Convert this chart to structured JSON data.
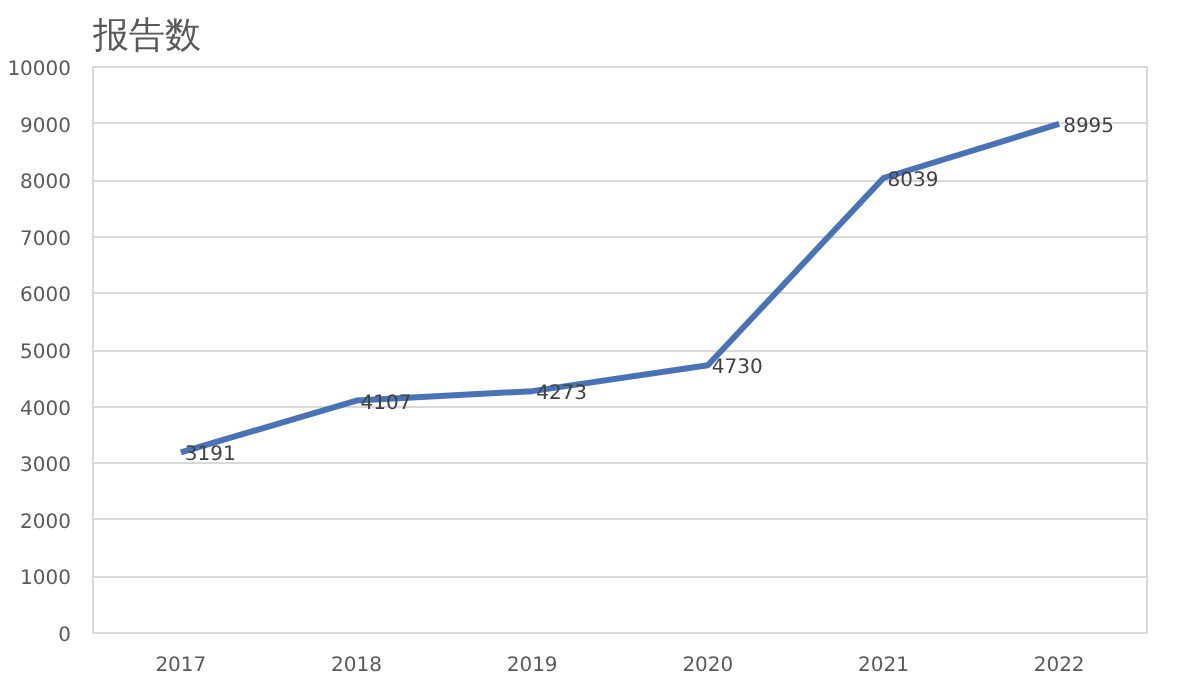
{
  "chart_data": {
    "type": "line",
    "title": "报告数",
    "categories": [
      "2017",
      "2018",
      "2019",
      "2020",
      "2021",
      "2022"
    ],
    "series": [
      {
        "color": "#4a73b5",
        "values": [
          3191,
          4107,
          4273,
          4730,
          8039,
          8995
        ]
      }
    ],
    "ylim": [
      0,
      10000
    ],
    "yticks": [
      0,
      1000,
      2000,
      3000,
      4000,
      5000,
      6000,
      7000,
      8000,
      9000,
      10000
    ],
    "grid": "y",
    "data_labels": true,
    "marker": "none",
    "line_style": "solid"
  }
}
